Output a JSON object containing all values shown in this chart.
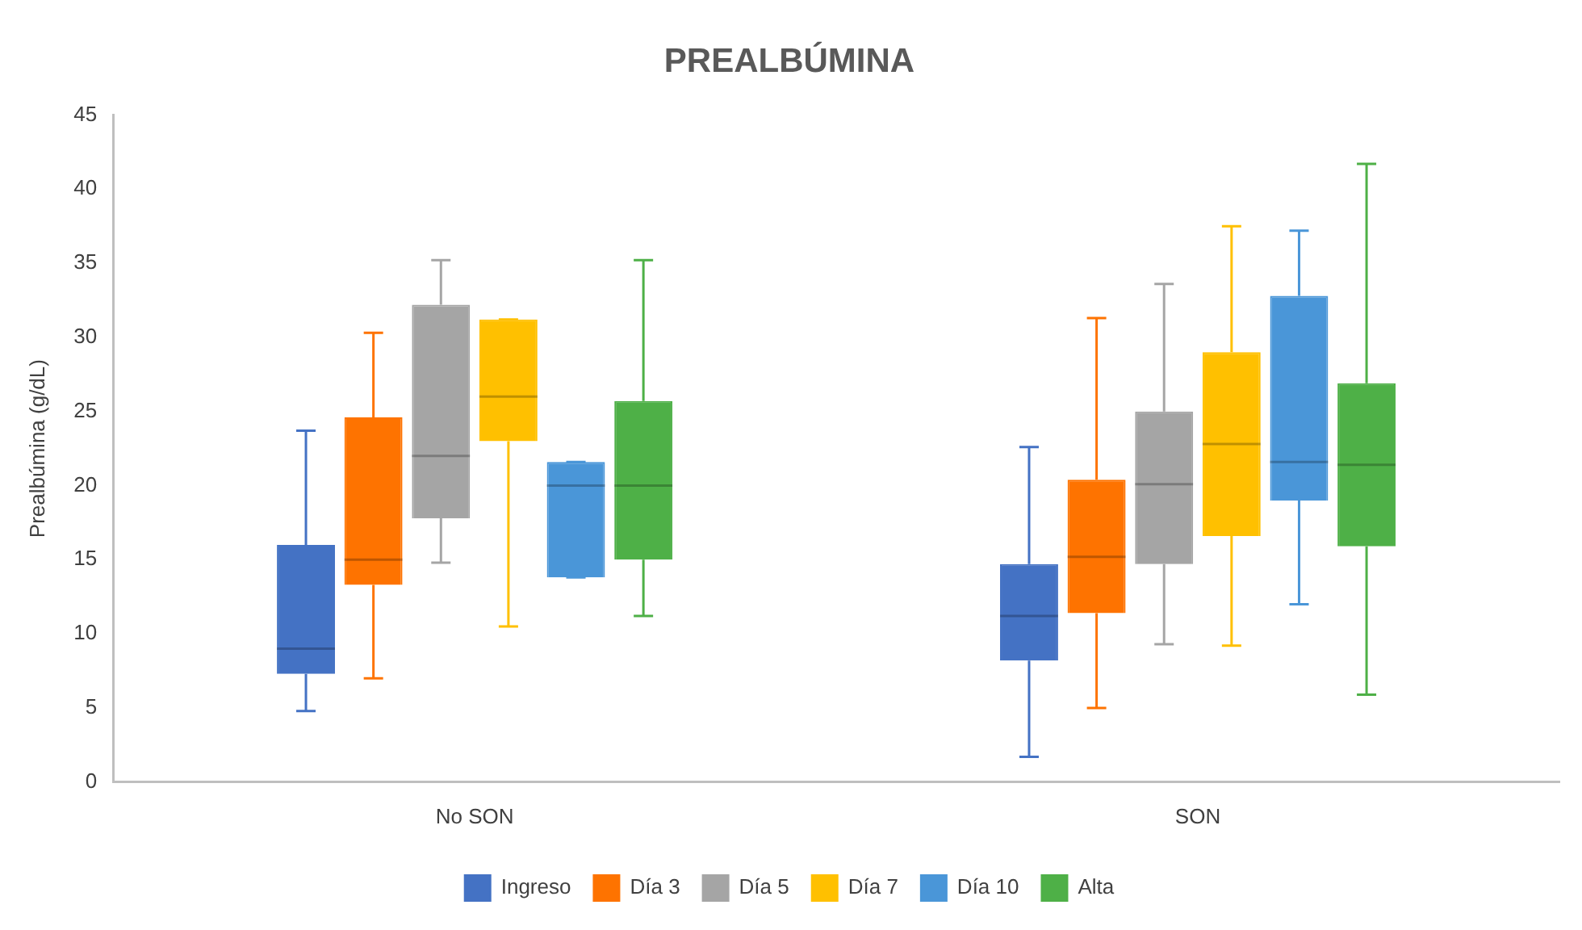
{
  "chart_data": {
    "type": "box",
    "title": "PREALBÚMINA",
    "ylabel": "Prealbúmina (g/dL)",
    "categories": [
      "No SON",
      "SON"
    ],
    "ylim": [
      0,
      45
    ],
    "yticks": [
      0,
      5,
      10,
      15,
      20,
      25,
      30,
      35,
      40,
      45
    ],
    "grid": false,
    "legend": "bottom",
    "series": [
      {
        "name": "Ingreso",
        "color": "#4472c4",
        "boxes": [
          {
            "low": 4.8,
            "q1": 7.3,
            "median": 9,
            "q3": 16,
            "high": 23.7
          },
          {
            "low": 1.7,
            "q1": 8.2,
            "median": 11.2,
            "q3": 14.7,
            "high": 22.6
          }
        ]
      },
      {
        "name": "Día 3",
        "color": "#fe7300",
        "boxes": [
          {
            "low": 7,
            "q1": 13.3,
            "median": 15,
            "q3": 24.6,
            "high": 30.3
          },
          {
            "low": 5,
            "q1": 11.4,
            "median": 15.2,
            "q3": 20.4,
            "high": 31.3
          }
        ]
      },
      {
        "name": "Día 5",
        "color": "#a5a5a5",
        "boxes": [
          {
            "low": 14.8,
            "q1": 17.8,
            "median": 22,
            "q3": 32.2,
            "high": 35.2
          },
          {
            "low": 9.3,
            "q1": 14.7,
            "median": 20.1,
            "q3": 25,
            "high": 33.6
          }
        ]
      },
      {
        "name": "Día 7",
        "color": "#ffc000",
        "boxes": [
          {
            "low": 10.5,
            "q1": 23,
            "median": 26,
            "q3": 31.2,
            "high": 31.2
          },
          {
            "low": 9.2,
            "q1": 16.6,
            "median": 22.8,
            "q3": 29,
            "high": 37.5
          }
        ]
      },
      {
        "name": "Día 10",
        "color": "#4a96d8",
        "boxes": [
          {
            "low": 13.8,
            "q1": 13.8,
            "median": 20,
            "q3": 21.6,
            "high": 21.6
          },
          {
            "low": 12,
            "q1": 19,
            "median": 21.6,
            "q3": 32.8,
            "high": 37.2
          }
        ]
      },
      {
        "name": "Alta",
        "color": "#4eb047",
        "boxes": [
          {
            "low": 11.2,
            "q1": 15,
            "median": 20,
            "q3": 25.7,
            "high": 35.2
          },
          {
            "low": 5.9,
            "q1": 15.9,
            "median": 21.4,
            "q3": 26.9,
            "high": 41.7
          }
        ]
      }
    ]
  }
}
